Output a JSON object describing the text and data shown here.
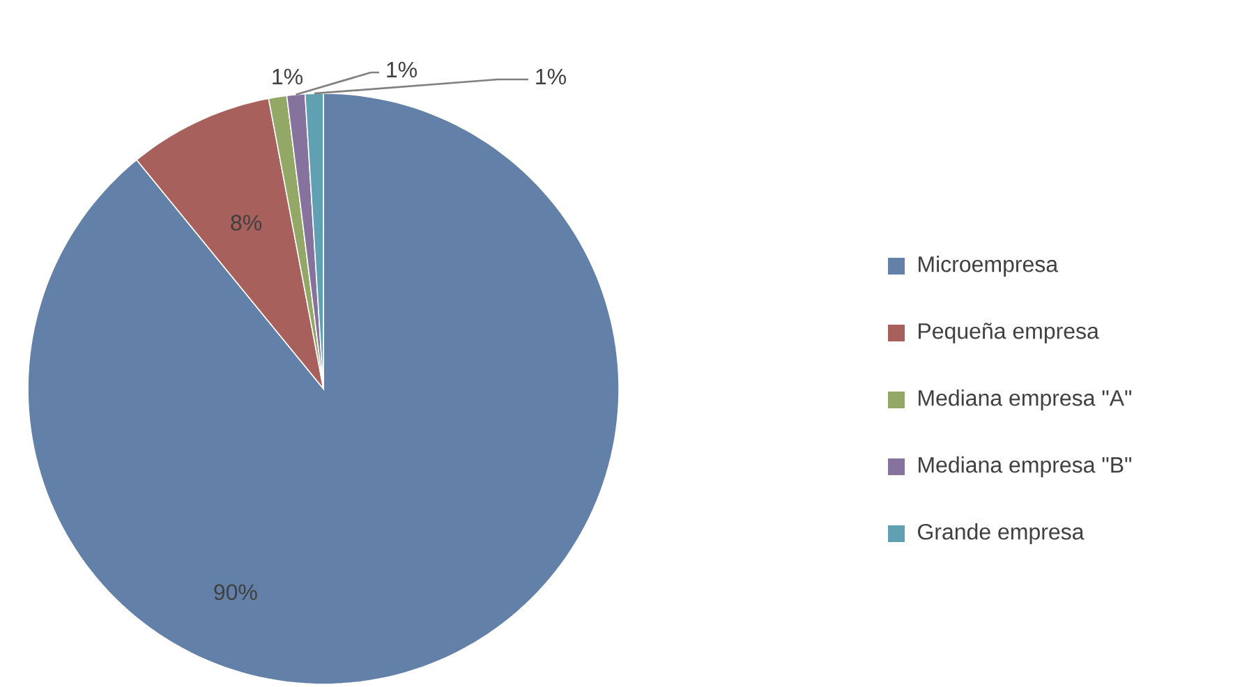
{
  "chart_data": {
    "type": "pie",
    "categories": [
      "Microempresa",
      "Pequeña empresa",
      "Mediana empresa \"A\"",
      "Mediana empresa \"B\"",
      "Grande empresa"
    ],
    "values": [
      90,
      8,
      1,
      1,
      1
    ],
    "value_labels": [
      "90%",
      "8%",
      "1%",
      "1%",
      "1%"
    ],
    "colors": [
      "#6380a8",
      "#a8605c",
      "#93a866",
      "#85739e",
      "#5fa0b3"
    ],
    "legend": "right"
  }
}
